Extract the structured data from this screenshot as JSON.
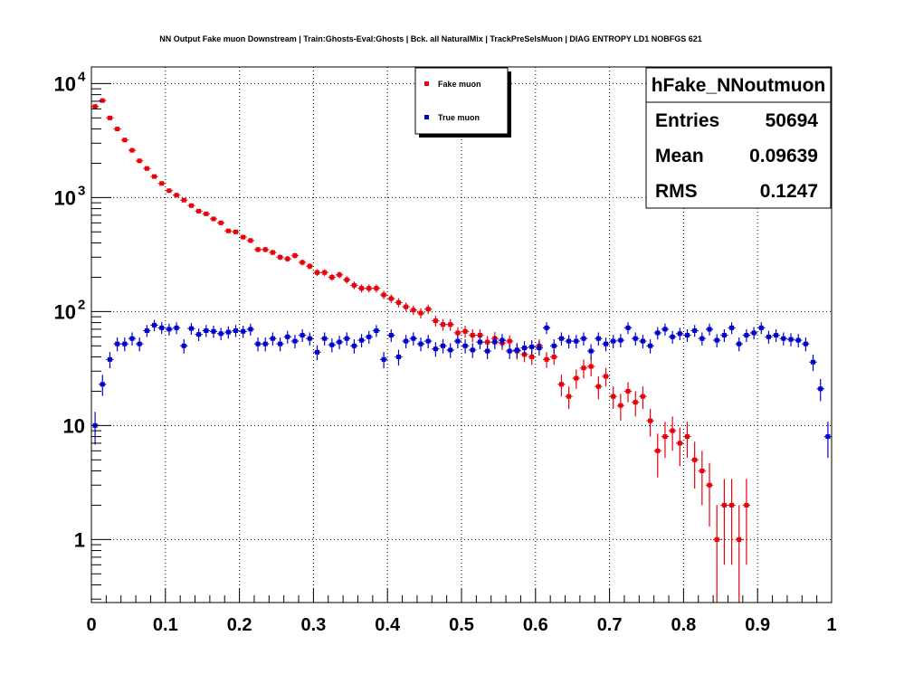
{
  "title": "NN Output Fake muon Downstream | Train:Ghosts-Eval:Ghosts | Bck. all NaturalMix | TrackPreSelsMuon | DIAG ENTROPY LD1 NOBFGS 621",
  "stats": {
    "name": "hFake_NNoutmuon",
    "rows": [
      {
        "label": "Entries",
        "value": "50694"
      },
      {
        "label": "Mean",
        "value": "0.09639"
      },
      {
        "label": "RMS",
        "value": "0.1247"
      }
    ]
  },
  "colors": {
    "fake": "#e8000b",
    "true": "#0000cc",
    "frame": "#000000",
    "grid": "#000000"
  },
  "chart_data": {
    "type": "scatter",
    "title": "NN Output Fake muon Downstream | Train:Ghosts-Eval:Ghosts | Bck. all NaturalMix | TrackPreSelsMuon | DIAG ENTROPY LD1 NOBFGS 621",
    "xlim": [
      0,
      1
    ],
    "ylim": [
      0.28,
      14000
    ],
    "yscale": "log",
    "grid": true,
    "legend_position": "top-center",
    "x_ticks": [
      {
        "v": 0,
        "label": "0"
      },
      {
        "v": 0.1,
        "label": "0.1"
      },
      {
        "v": 0.2,
        "label": "0.2"
      },
      {
        "v": 0.3,
        "label": "0.3"
      },
      {
        "v": 0.4,
        "label": "0.4"
      },
      {
        "v": 0.5,
        "label": "0.5"
      },
      {
        "v": 0.6,
        "label": "0.6"
      },
      {
        "v": 0.7,
        "label": "0.7"
      },
      {
        "v": 0.8,
        "label": "0.8"
      },
      {
        "v": 0.9,
        "label": "0.9"
      },
      {
        "v": 1,
        "label": "1"
      }
    ],
    "y_ticks": [
      {
        "v": 1,
        "base": "1",
        "exp": ""
      },
      {
        "v": 10,
        "base": "10",
        "exp": ""
      },
      {
        "v": 100,
        "base": "10",
        "exp": "2"
      },
      {
        "v": 1000,
        "base": "10",
        "exp": "3"
      },
      {
        "v": 10000,
        "base": "10",
        "exp": "4"
      }
    ],
    "bin_width": 0.01,
    "series": [
      {
        "name": "Fake muon",
        "color": "#e8000b",
        "x": [
          0.005,
          0.015,
          0.025,
          0.035,
          0.045,
          0.055,
          0.065,
          0.075,
          0.085,
          0.095,
          0.105,
          0.115,
          0.125,
          0.135,
          0.145,
          0.155,
          0.165,
          0.175,
          0.185,
          0.195,
          0.205,
          0.215,
          0.225,
          0.235,
          0.245,
          0.255,
          0.265,
          0.275,
          0.285,
          0.295,
          0.305,
          0.315,
          0.325,
          0.335,
          0.345,
          0.355,
          0.365,
          0.375,
          0.385,
          0.395,
          0.405,
          0.415,
          0.425,
          0.435,
          0.445,
          0.455,
          0.465,
          0.475,
          0.485,
          0.495,
          0.505,
          0.515,
          0.525,
          0.535,
          0.545,
          0.555,
          0.565,
          0.575,
          0.585,
          0.595,
          0.605,
          0.615,
          0.625,
          0.635,
          0.645,
          0.655,
          0.665,
          0.675,
          0.685,
          0.695,
          0.705,
          0.715,
          0.725,
          0.735,
          0.745,
          0.755,
          0.765,
          0.775,
          0.785,
          0.795,
          0.805,
          0.815,
          0.825,
          0.835,
          0.845,
          0.855,
          0.865,
          0.875,
          0.885
        ],
        "values": [
          6300,
          7100,
          5000,
          4000,
          3200,
          2600,
          2100,
          1800,
          1530,
          1330,
          1150,
          1050,
          950,
          850,
          760,
          720,
          650,
          600,
          510,
          500,
          450,
          420,
          350,
          350,
          330,
          300,
          290,
          310,
          270,
          250,
          220,
          220,
          200,
          210,
          190,
          170,
          160,
          160,
          160,
          140,
          130,
          120,
          110,
          103,
          97,
          105,
          83,
          77,
          77,
          65,
          67,
          62,
          62,
          54,
          58,
          53,
          55,
          45,
          42,
          40,
          50,
          38,
          40,
          23,
          18,
          26,
          32,
          33,
          22,
          27,
          18,
          15,
          20,
          16,
          18,
          11,
          6,
          8,
          9,
          7,
          8,
          5,
          4,
          3,
          1,
          2,
          2,
          1,
          2
        ],
        "err": [
          79,
          84,
          71,
          63,
          57,
          51,
          46,
          42,
          39,
          36,
          34,
          32,
          31,
          29,
          28,
          27,
          26,
          24,
          23,
          22,
          21,
          20,
          19,
          19,
          18,
          17,
          17,
          18,
          16,
          16,
          15,
          15,
          14,
          14,
          14,
          13,
          13,
          13,
          13,
          12,
          11,
          11,
          10,
          10,
          10,
          10,
          9,
          9,
          9,
          8,
          8,
          8,
          8,
          7,
          8,
          7,
          7,
          7,
          6,
          6,
          7,
          6,
          6,
          5,
          4,
          5,
          6,
          6,
          5,
          5,
          4,
          4,
          4,
          4,
          4,
          3,
          2.5,
          2.8,
          3,
          2.6,
          2.8,
          2.2,
          2,
          1.7,
          1,
          1.4,
          1.4,
          1,
          1.4
        ]
      },
      {
        "name": "True muon",
        "color": "#0000cc",
        "x": [
          0.005,
          0.015,
          0.025,
          0.035,
          0.045,
          0.055,
          0.065,
          0.075,
          0.085,
          0.095,
          0.105,
          0.115,
          0.125,
          0.135,
          0.145,
          0.155,
          0.165,
          0.175,
          0.185,
          0.195,
          0.205,
          0.215,
          0.225,
          0.235,
          0.245,
          0.255,
          0.265,
          0.275,
          0.285,
          0.295,
          0.305,
          0.315,
          0.325,
          0.335,
          0.345,
          0.355,
          0.365,
          0.375,
          0.385,
          0.395,
          0.405,
          0.415,
          0.425,
          0.435,
          0.445,
          0.455,
          0.465,
          0.475,
          0.485,
          0.495,
          0.505,
          0.515,
          0.525,
          0.535,
          0.545,
          0.555,
          0.565,
          0.575,
          0.585,
          0.595,
          0.605,
          0.615,
          0.625,
          0.635,
          0.645,
          0.655,
          0.665,
          0.675,
          0.685,
          0.695,
          0.705,
          0.715,
          0.725,
          0.735,
          0.745,
          0.755,
          0.765,
          0.775,
          0.785,
          0.795,
          0.805,
          0.815,
          0.825,
          0.835,
          0.845,
          0.855,
          0.865,
          0.875,
          0.885,
          0.895,
          0.905,
          0.915,
          0.925,
          0.935,
          0.945,
          0.955,
          0.965,
          0.975,
          0.985,
          0.995
        ],
        "values": [
          10,
          23,
          38,
          52,
          52,
          58,
          52,
          68,
          76,
          72,
          70,
          72,
          50,
          71,
          63,
          68,
          67,
          64,
          66,
          68,
          67,
          70,
          52,
          52,
          58,
          52,
          60,
          55,
          62,
          58,
          44,
          58,
          51,
          54,
          58,
          50,
          56,
          60,
          68,
          38,
          62,
          40,
          55,
          58,
          52,
          55,
          47,
          50,
          46,
          55,
          50,
          46,
          54,
          45,
          54,
          56,
          45,
          46,
          48,
          49,
          48,
          72,
          50,
          58,
          55,
          55,
          58,
          45,
          58,
          52,
          55,
          56,
          72,
          58,
          55,
          50,
          65,
          70,
          60,
          64,
          62,
          68,
          58,
          70,
          56,
          62,
          72,
          52,
          62,
          65,
          72,
          60,
          62,
          58,
          57,
          56,
          52,
          36,
          21,
          8
        ],
        "err": [
          3.2,
          4.8,
          6.2,
          7.2,
          7.2,
          7.6,
          7.2,
          8.2,
          8.7,
          8.5,
          8.4,
          8.5,
          7.1,
          8.4,
          7.9,
          8.2,
          8.2,
          8,
          8.1,
          8.2,
          8.2,
          8.4,
          7.2,
          7.2,
          7.6,
          7.2,
          7.7,
          7.4,
          7.9,
          7.6,
          6.6,
          7.6,
          7.1,
          7.3,
          7.6,
          7.1,
          7.5,
          7.7,
          8.2,
          6.2,
          7.9,
          6.3,
          7.4,
          7.6,
          7.2,
          7.4,
          6.9,
          7.1,
          6.8,
          7.4,
          7.1,
          6.8,
          7.3,
          6.7,
          7.3,
          7.5,
          6.7,
          6.8,
          6.9,
          7,
          6.9,
          8.5,
          7.1,
          7.6,
          7.4,
          7.4,
          7.6,
          6.7,
          7.6,
          7.2,
          7.4,
          7.5,
          8.5,
          7.6,
          7.4,
          7.1,
          8.1,
          8.4,
          7.7,
          8,
          7.9,
          8.2,
          7.6,
          8.4,
          7.5,
          7.9,
          8.5,
          7.2,
          7.9,
          8.1,
          8.5,
          7.7,
          7.9,
          7.6,
          7.5,
          7.5,
          7.2,
          6,
          4.6,
          2.8
        ]
      }
    ]
  }
}
